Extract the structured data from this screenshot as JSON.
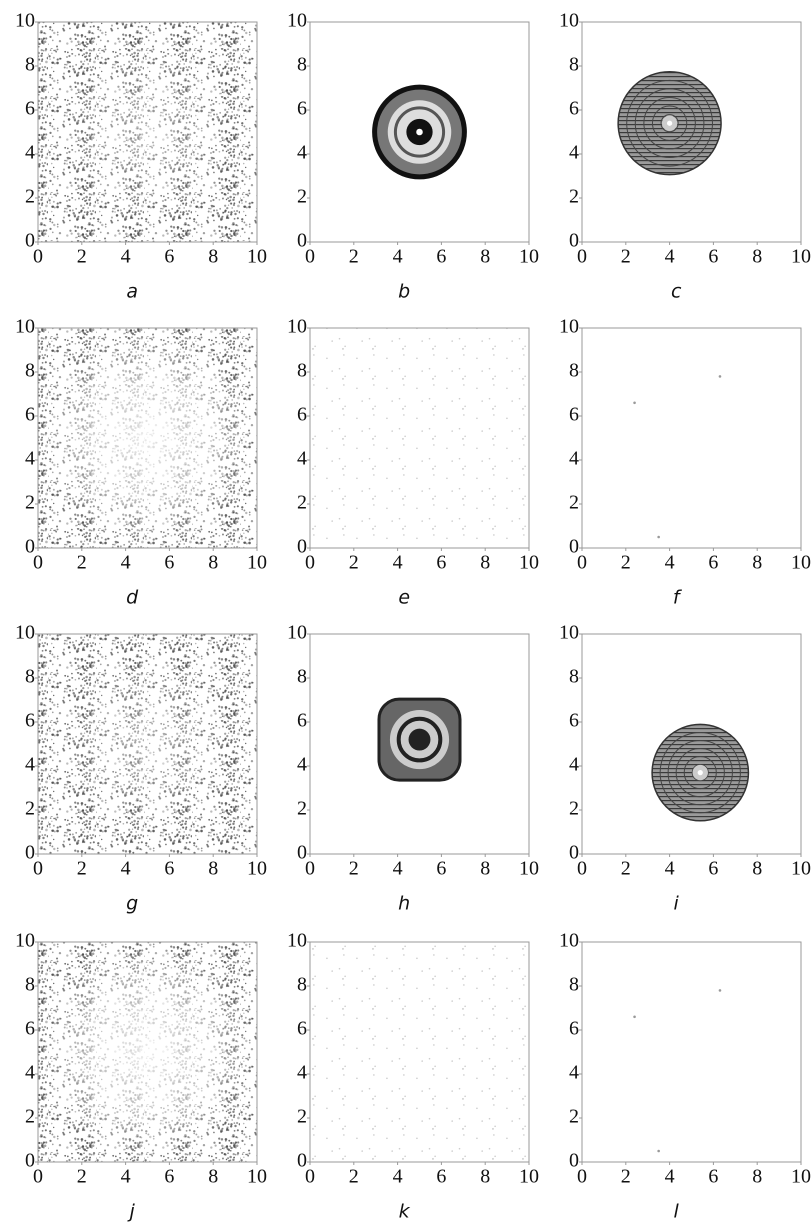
{
  "chart_data": [
    {
      "type": "scatter",
      "xlabel": "a",
      "xlim": [
        0,
        10
      ],
      "ylim": [
        0,
        10
      ],
      "xticks": [
        0,
        2,
        4,
        6,
        8,
        10
      ],
      "yticks": [
        0,
        2,
        4,
        6,
        8,
        10
      ]
    },
    {
      "type": "scatter",
      "xlabel": "b",
      "xlim": [
        0,
        10
      ],
      "ylim": [
        0,
        10
      ],
      "xticks": [
        0,
        2,
        4,
        6,
        8,
        10
      ],
      "yticks": [
        0,
        2,
        4,
        6,
        8,
        10
      ]
    },
    {
      "type": "scatter",
      "xlabel": "c",
      "xlim": [
        0,
        10
      ],
      "ylim": [
        0,
        10
      ],
      "xticks": [
        0,
        2,
        4,
        6,
        8,
        10
      ],
      "yticks": [
        0,
        2,
        4,
        6,
        8,
        10
      ]
    },
    {
      "type": "scatter",
      "xlabel": "d",
      "xlim": [
        0,
        10
      ],
      "ylim": [
        0,
        10
      ],
      "xticks": [
        0,
        2,
        4,
        6,
        8,
        10
      ],
      "yticks": [
        0,
        2,
        4,
        6,
        8,
        10
      ]
    },
    {
      "type": "scatter",
      "xlabel": "e",
      "xlim": [
        0,
        10
      ],
      "ylim": [
        0,
        10
      ],
      "xticks": [
        0,
        2,
        4,
        6,
        8,
        10
      ],
      "yticks": [
        0,
        2,
        4,
        6,
        8,
        10
      ]
    },
    {
      "type": "scatter",
      "xlabel": "f",
      "xlim": [
        0,
        10
      ],
      "ylim": [
        0,
        10
      ],
      "xticks": [
        0,
        2,
        4,
        6,
        8,
        10
      ],
      "yticks": [
        0,
        2,
        4,
        6,
        8,
        10
      ],
      "x": [
        2.4,
        6.3,
        3.5
      ],
      "y": [
        6.6,
        7.8,
        0.5
      ],
      "color": "#999999"
    },
    {
      "type": "scatter",
      "xlabel": "g",
      "xlim": [
        0,
        10
      ],
      "ylim": [
        0,
        10
      ],
      "xticks": [
        0,
        2,
        4,
        6,
        8,
        10
      ],
      "yticks": [
        0,
        2,
        4,
        6,
        8,
        10
      ]
    },
    {
      "type": "scatter",
      "xlabel": "h",
      "xlim": [
        0,
        10
      ],
      "ylim": [
        0,
        10
      ],
      "xticks": [
        0,
        2,
        4,
        6,
        8,
        10
      ],
      "yticks": [
        0,
        2,
        4,
        6,
        8,
        10
      ]
    },
    {
      "type": "scatter",
      "xlabel": "i",
      "xlim": [
        0,
        10
      ],
      "ylim": [
        0,
        10
      ],
      "xticks": [
        0,
        2,
        4,
        6,
        8,
        10
      ],
      "yticks": [
        0,
        2,
        4,
        6,
        8,
        10
      ]
    },
    {
      "type": "scatter",
      "xlabel": "j",
      "xlim": [
        0,
        10
      ],
      "ylim": [
        0,
        10
      ],
      "xticks": [
        0,
        2,
        4,
        6,
        8,
        10
      ],
      "yticks": [
        0,
        2,
        4,
        6,
        8,
        10
      ]
    },
    {
      "type": "scatter",
      "xlabel": "k",
      "xlim": [
        0,
        10
      ],
      "ylim": [
        0,
        10
      ],
      "xticks": [
        0,
        2,
        4,
        6,
        8,
        10
      ],
      "yticks": [
        0,
        2,
        4,
        6,
        8,
        10
      ]
    },
    {
      "type": "scatter",
      "xlabel": "l",
      "xlim": [
        0,
        10
      ],
      "ylim": [
        0,
        10
      ],
      "xticks": [
        0,
        2,
        4,
        6,
        8,
        10
      ],
      "yticks": [
        0,
        2,
        4,
        6,
        8,
        10
      ],
      "x": [
        2.4,
        6.3,
        3.5
      ],
      "y": [
        6.6,
        7.8,
        0.5
      ],
      "color": "#999999"
    }
  ]
}
